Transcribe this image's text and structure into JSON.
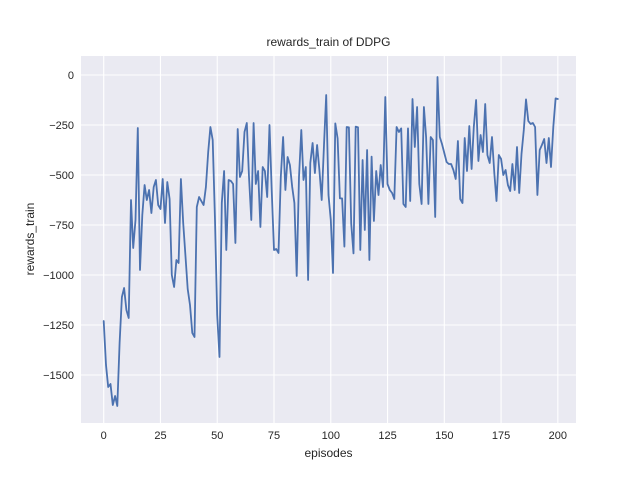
{
  "figure": {
    "title": "rewards_train of DDPG",
    "xlabel": "episodes",
    "ylabel": "rewards_train"
  },
  "colors": {
    "line": "#4C72B0",
    "plot_background": "#EAEAF2",
    "grid": "#FFFFFF",
    "figure_background": "#FFFFFF",
    "text": "#262626"
  },
  "chart_data": {
    "type": "line",
    "title": "rewards_train of DDPG",
    "xlabel": "episodes",
    "ylabel": "rewards_train",
    "xlim": [
      -10,
      208
    ],
    "ylim": [
      -1740,
      95
    ],
    "xticks": [
      0,
      25,
      50,
      75,
      100,
      125,
      150,
      175,
      200
    ],
    "yticks": [
      0,
      -250,
      -500,
      -750,
      -1000,
      -1250,
      -1500
    ],
    "grid": true,
    "legend_position": "none",
    "series": [
      {
        "name": "rewards_train",
        "x0": 0,
        "dx": 1,
        "values": [
          -1230,
          -1450,
          -1560,
          -1545,
          -1650,
          -1605,
          -1655,
          -1340,
          -1110,
          -1065,
          -1175,
          -1215,
          -625,
          -865,
          -725,
          -265,
          -975,
          -700,
          -550,
          -625,
          -575,
          -690,
          -560,
          -525,
          -650,
          -670,
          -520,
          -740,
          -535,
          -620,
          -1000,
          -1060,
          -925,
          -940,
          -520,
          -740,
          -900,
          -1070,
          -1150,
          -1290,
          -1310,
          -660,
          -610,
          -630,
          -650,
          -560,
          -385,
          -260,
          -325,
          -725,
          -1200,
          -1410,
          -640,
          -480,
          -875,
          -525,
          -530,
          -545,
          -840,
          -270,
          -510,
          -480,
          -285,
          -240,
          -510,
          -725,
          -240,
          -545,
          -480,
          -760,
          -460,
          -480,
          -610,
          -250,
          -575,
          -875,
          -870,
          -890,
          -510,
          -310,
          -575,
          -410,
          -450,
          -560,
          -640,
          -1005,
          -510,
          -275,
          -525,
          -460,
          -1025,
          -440,
          -340,
          -490,
          -350,
          -475,
          -625,
          -350,
          -100,
          -600,
          -725,
          -990,
          -242,
          -317,
          -617,
          -617,
          -858,
          -260,
          -262,
          -742,
          -892,
          -258,
          -262,
          -875,
          -425,
          -775,
          -375,
          -925,
          -408,
          -730,
          -480,
          -600,
          -450,
          -560,
          -110,
          -545,
          -575,
          -590,
          -620,
          -260,
          -285,
          -267,
          -645,
          -660,
          -267,
          -630,
          -120,
          -360,
          -160,
          -545,
          -645,
          -160,
          -310,
          -645,
          -310,
          -325,
          -710,
          -10,
          -310,
          -345,
          -390,
          -435,
          -445,
          -445,
          -475,
          -520,
          -330,
          -620,
          -640,
          -315,
          -480,
          -255,
          -470,
          -260,
          -125,
          -430,
          -300,
          -385,
          -145,
          -400,
          -440,
          -310,
          -490,
          -630,
          -400,
          -420,
          -500,
          -475,
          -550,
          -580,
          -445,
          -575,
          -360,
          -590,
          -395,
          -275,
          -122,
          -230,
          -245,
          -240,
          -260,
          -600,
          -375,
          -350,
          -320,
          -440,
          -315,
          -460,
          -260,
          -117,
          -120
        ]
      }
    ]
  }
}
